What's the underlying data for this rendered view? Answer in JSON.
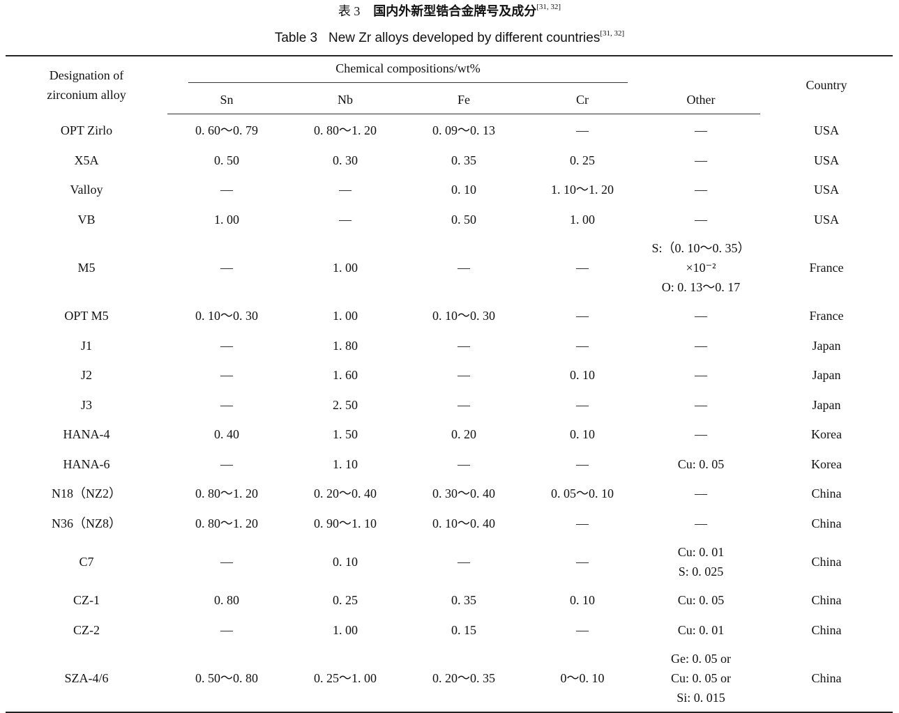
{
  "caption_cn": {
    "label": "表 3",
    "text": "国内外新型锆合金牌号及成分",
    "refs": "[31, 32]"
  },
  "caption_en": {
    "label": "Table 3",
    "text": "New Zr alloys developed by different countries",
    "refs": "[31, 32]"
  },
  "headers": {
    "designation": [
      "Designation of",
      "zirconium alloy"
    ],
    "group": "Chemical compositions/wt%",
    "columns": [
      "Sn",
      "Nb",
      "Fe",
      "Cr",
      "Other"
    ],
    "country": "Country"
  },
  "rows": [
    [
      "OPT Zirlo",
      "0. 60～0. 79",
      "0. 80～1. 20",
      "0. 09～0. 13",
      "—",
      [
        "—"
      ],
      "USA"
    ],
    [
      "X5A",
      "0. 50",
      "0. 30",
      "0. 35",
      "0. 25",
      [
        "—"
      ],
      "USA"
    ],
    [
      "Valloy",
      "—",
      "—",
      "0. 10",
      "1. 10～1. 20",
      [
        "—"
      ],
      "USA"
    ],
    [
      "VB",
      "1. 00",
      "—",
      "0. 50",
      "1. 00",
      [
        "—"
      ],
      "USA"
    ],
    [
      "M5",
      "—",
      "1. 00",
      "—",
      "—",
      [
        "S:（0. 10～0. 35）×10⁻²",
        "O: 0. 13～0. 17"
      ],
      "France"
    ],
    [
      "OPT M5",
      "0. 10～0. 30",
      "1. 00",
      "0. 10～0. 30",
      "—",
      [
        "—"
      ],
      "France"
    ],
    [
      "J1",
      "—",
      "1. 80",
      "—",
      "—",
      [
        "—"
      ],
      "Japan"
    ],
    [
      "J2",
      "—",
      "1. 60",
      "—",
      "0. 10",
      [
        "—"
      ],
      "Japan"
    ],
    [
      "J3",
      "—",
      "2. 50",
      "—",
      "—",
      [
        "—"
      ],
      "Japan"
    ],
    [
      "HANA-4",
      "0. 40",
      "1. 50",
      "0. 20",
      "0. 10",
      [
        "—"
      ],
      "Korea"
    ],
    [
      "HANA-6",
      "—",
      "1. 10",
      "—",
      "—",
      [
        "Cu: 0. 05"
      ],
      "Korea"
    ],
    [
      "N18（NZ2）",
      "0. 80～1. 20",
      "0. 20～0. 40",
      "0. 30～0. 40",
      "0. 05～0. 10",
      [
        "—"
      ],
      "China"
    ],
    [
      "N36（NZ8）",
      "0. 80～1. 20",
      "0. 90～1. 10",
      "0. 10～0. 40",
      "—",
      [
        "—"
      ],
      "China"
    ],
    [
      "C7",
      "—",
      "0. 10",
      "—",
      "—",
      [
        "Cu: 0. 01",
        "S: 0. 025"
      ],
      "China"
    ],
    [
      "CZ-1",
      "0. 80",
      "0. 25",
      "0. 35",
      "0. 10",
      [
        "Cu: 0. 05"
      ],
      "China"
    ],
    [
      "CZ-2",
      "—",
      "1. 00",
      "0. 15",
      "—",
      [
        "Cu: 0. 01"
      ],
      "China"
    ],
    [
      "SZA-4/6",
      "0. 50～0. 80",
      "0. 25～1. 00",
      "0. 20～0. 35",
      "0～0. 10",
      [
        "Ge: 0. 05 or",
        "Cu: 0. 05 or",
        "Si: 0. 015"
      ],
      "China"
    ]
  ]
}
